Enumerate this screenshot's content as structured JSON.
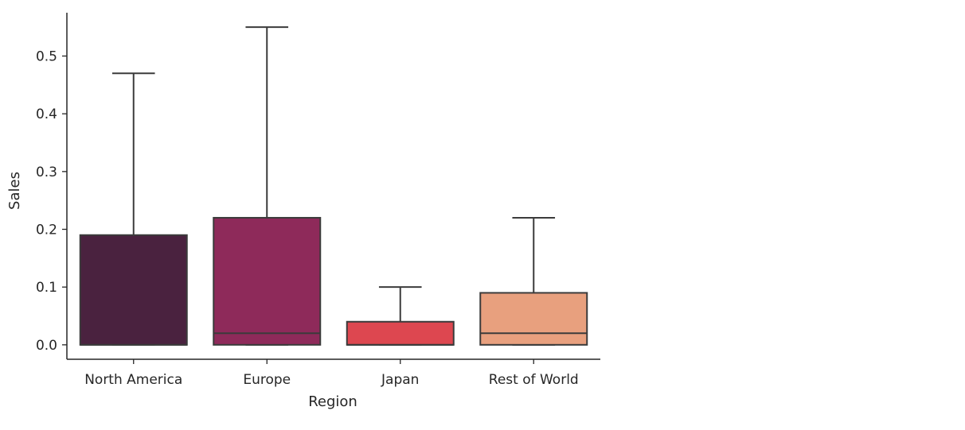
{
  "chart_data": {
    "type": "box",
    "title": "",
    "xlabel": "Region",
    "ylabel": "Sales",
    "ylim": [
      -0.025,
      0.575
    ],
    "yticks": [
      "0.0",
      "0.1",
      "0.2",
      "0.3",
      "0.4",
      "0.5"
    ],
    "ytick_values": [
      0.0,
      0.1,
      0.2,
      0.3,
      0.4,
      0.5
    ],
    "grid": false,
    "outliers_shown": false,
    "categories": [
      "North America",
      "Europe",
      "Japan",
      "Rest of World"
    ],
    "boxes": [
      {
        "category": "North America",
        "whisker_low": 0.0,
        "q1": 0.0,
        "median": 0.0,
        "q3": 0.19,
        "whisker_high": 0.47,
        "color": "#4a223f"
      },
      {
        "category": "Europe",
        "whisker_low": 0.0,
        "q1": 0.0,
        "median": 0.02,
        "q3": 0.22,
        "whisker_high": 0.55,
        "color": "#8e2a5a"
      },
      {
        "category": "Japan",
        "whisker_low": 0.0,
        "q1": 0.0,
        "median": 0.0,
        "q3": 0.04,
        "whisker_high": 0.1,
        "color": "#dd4750"
      },
      {
        "category": "Rest of World",
        "whisker_low": 0.0,
        "q1": 0.0,
        "median": 0.02,
        "q3": 0.09,
        "whisker_high": 0.22,
        "color": "#e8a07e"
      }
    ],
    "line_color": "#3b3b3b"
  }
}
